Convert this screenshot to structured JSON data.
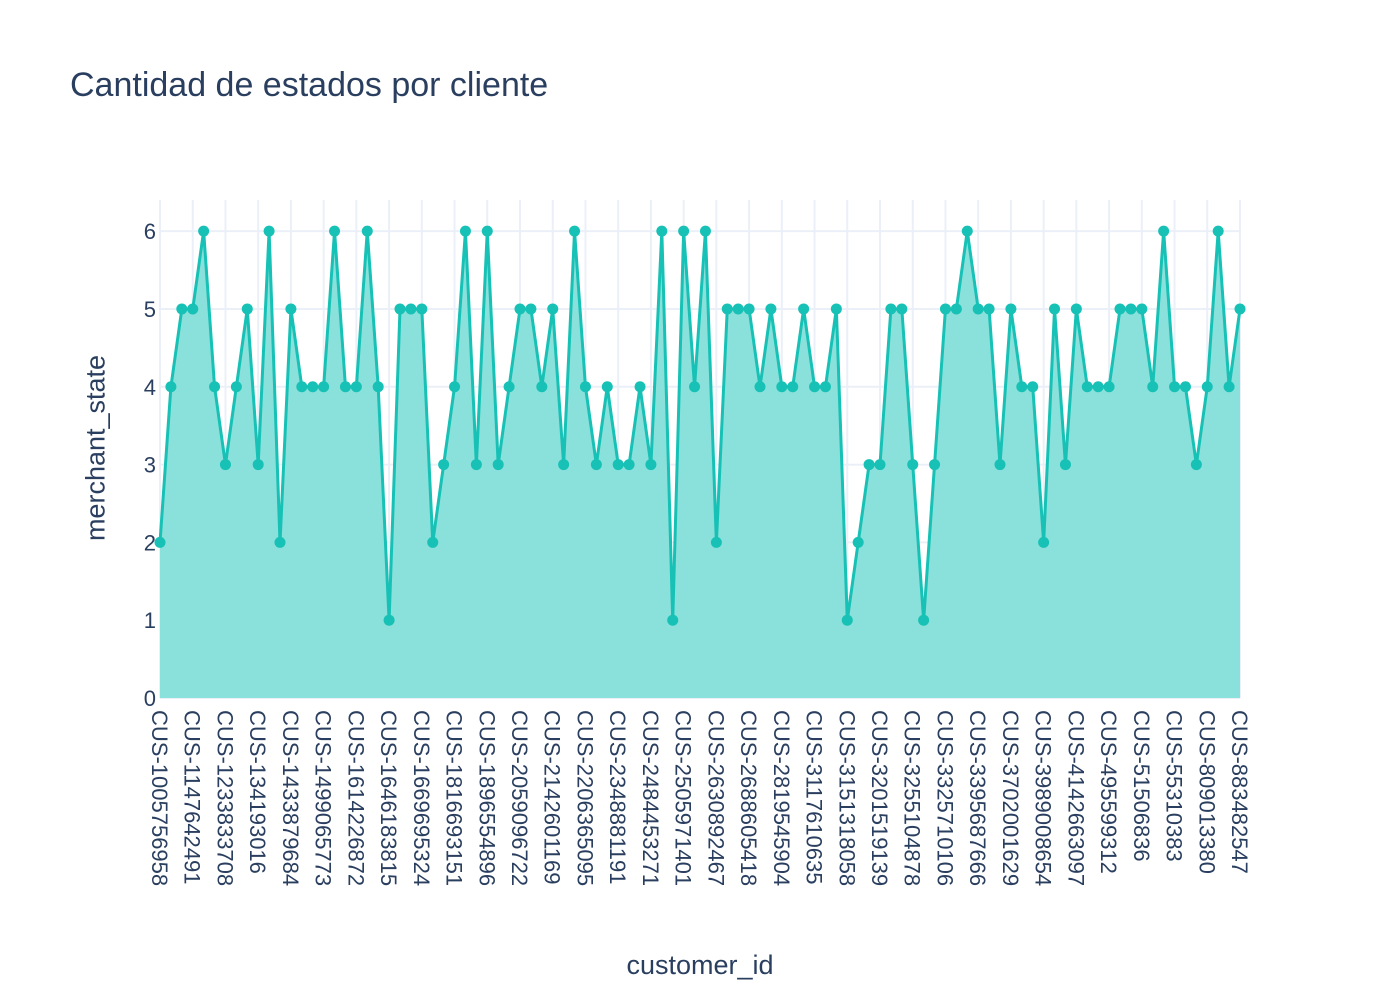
{
  "chart_data": {
    "type": "area",
    "title": "Cantidad de estados por cliente",
    "xlabel": "customer_id",
    "ylabel": "merchant_state",
    "ylim": [
      0,
      6.4
    ],
    "y_ticks": [
      0,
      1,
      2,
      3,
      4,
      5,
      6
    ],
    "grid": true,
    "line_color": "#17c1b5",
    "fill_color": "#8ae0db",
    "grid_color": "#ebf0f8",
    "x_tick_labels": [
      "CUS-1005756958",
      "CUS-1147642491",
      "CUS-1233833708",
      "CUS-134193016",
      "CUS-1433879684",
      "CUS-1499065773",
      "CUS-1614226872",
      "CUS-1646183815",
      "CUS-1669695324",
      "CUS-1816693151",
      "CUS-1896554896",
      "CUS-2059096722",
      "CUS-2142601169",
      "CUS-2206365095",
      "CUS-2348881191",
      "CUS-2484453271",
      "CUS-2505971401",
      "CUS-2630892467",
      "CUS-2688605418",
      "CUS-2819545904",
      "CUS-3117610635",
      "CUS-3151318058",
      "CUS-3201519139",
      "CUS-3255104878",
      "CUS-3325710106",
      "CUS-3395687666",
      "CUS-3702001629",
      "CUS-3989008654",
      "CUS-4142663097",
      "CUS-495599312",
      "CUS-51506836",
      "CUS-55310383",
      "CUS-809013380",
      "CUS-883482547"
    ],
    "values": [
      2,
      4,
      5,
      5,
      6,
      4,
      3,
      4,
      5,
      3,
      6,
      2,
      5,
      4,
      4,
      4,
      6,
      4,
      4,
      6,
      4,
      1,
      5,
      5,
      5,
      2,
      3,
      4,
      6,
      3,
      6,
      3,
      4,
      5,
      5,
      4,
      5,
      3,
      6,
      4,
      3,
      4,
      3,
      3,
      4,
      3,
      6,
      1,
      6,
      4,
      6,
      2,
      5,
      5,
      5,
      4,
      5,
      4,
      4,
      5,
      4,
      4,
      5,
      1,
      2,
      3,
      3,
      5,
      5,
      3,
      1,
      3,
      5,
      5,
      6,
      5,
      5,
      3,
      5,
      4,
      4,
      2,
      5,
      3,
      5,
      4,
      4,
      4,
      5,
      5,
      5,
      4,
      6,
      4,
      4,
      3,
      4,
      6,
      4,
      5
    ]
  }
}
